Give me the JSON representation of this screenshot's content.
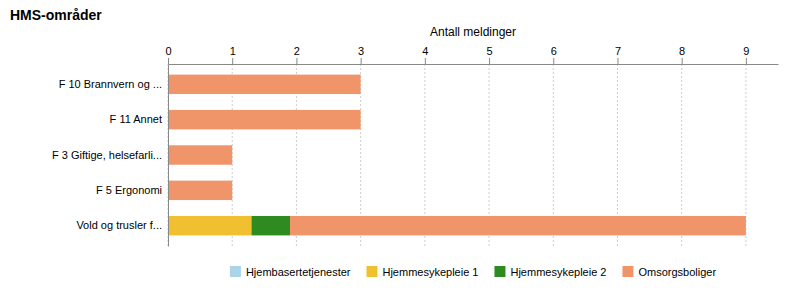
{
  "chart_data": {
    "type": "bar",
    "orientation": "horizontal",
    "stacked": true,
    "title": "HMS-områder",
    "xlabel": "Antall meldinger",
    "categories": [
      "F 10 Brannvern og ...",
      "F 11 Annet",
      "F 3 Giftige, helsefarli...",
      "F 5 Ergonomi",
      "Vold og trusler f..."
    ],
    "series": [
      {
        "name": "Hjembasertetjenester",
        "color": "#aad4e8",
        "values": [
          0,
          0,
          0,
          0,
          0
        ]
      },
      {
        "name": "Hjemmesykepleie 1",
        "color": "#f0c030",
        "values": [
          0,
          0,
          0,
          0,
          1.3
        ]
      },
      {
        "name": "Hjemmesykepleie 2",
        "color": "#2e8b20",
        "values": [
          0,
          0,
          0,
          0,
          0.6
        ]
      },
      {
        "name": "Omsorgsboliger",
        "color": "#f0956a",
        "values": [
          3,
          3,
          1,
          1,
          7.1
        ]
      }
    ],
    "xlim": [
      0,
      9.5
    ],
    "xticks": [
      0,
      1,
      2,
      3,
      4,
      5,
      6,
      7,
      8,
      9
    ],
    "grid": true,
    "legend": "bottom"
  }
}
